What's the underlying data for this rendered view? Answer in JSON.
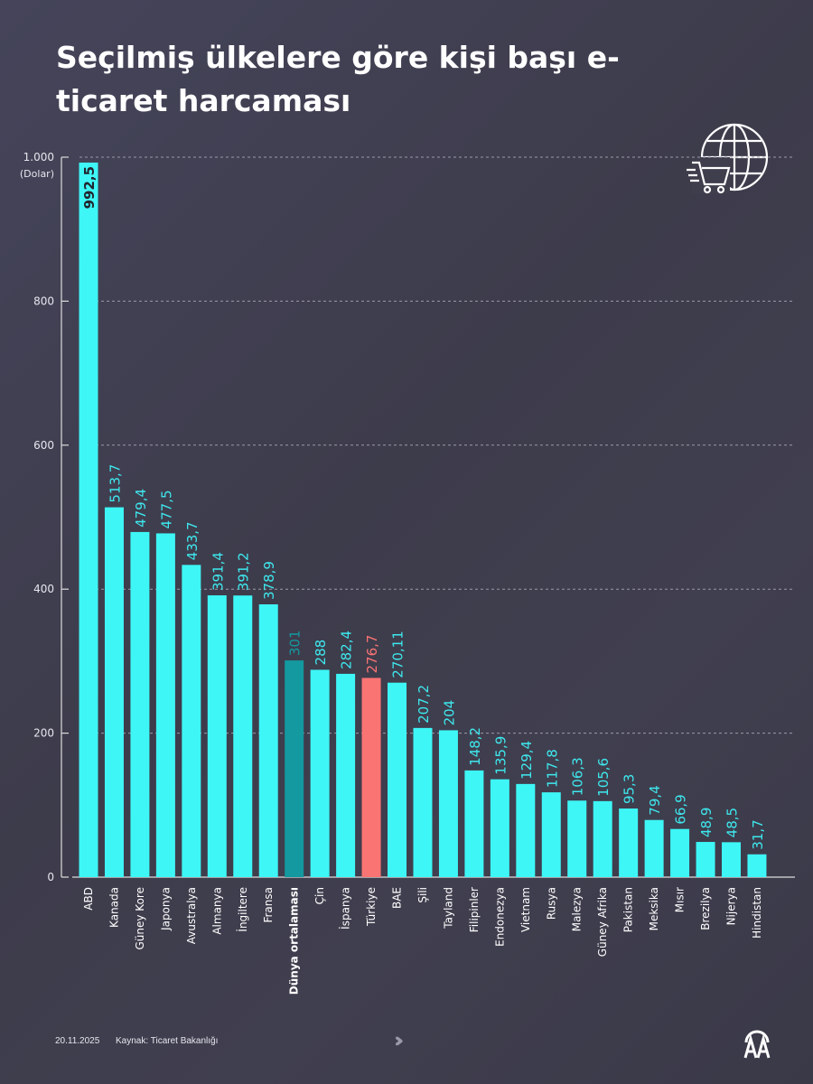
{
  "title": "Seçilmiş ülkelere göre kişi başı e-ticaret harcaması",
  "footer": {
    "date": "20.11.2025",
    "source": "Kaynak: Ticaret Bakanlığı"
  },
  "colors": {
    "bar": "#3ef6f6",
    "world_average": "#13999f",
    "turkey": "#fb7474",
    "background": "#3f3e4d"
  },
  "icons": [
    "globe-shopping-cart-icon",
    "chevrons-right-icon",
    "aa-logo"
  ],
  "chart_data": {
    "type": "bar",
    "title": "Seçilmiş ülkelere göre kişi başı e-ticaret harcaması",
    "ylabel": "(Dolar)",
    "ylim": [
      0,
      1000
    ],
    "yticks": [
      0,
      200,
      400,
      600,
      800,
      1000
    ],
    "ytick_labels": [
      "0",
      "200",
      "400",
      "600",
      "800",
      "1.000"
    ],
    "grid": "horizontal dashed",
    "categories": [
      "ABD",
      "Kanada",
      "Güney Kore",
      "Japonya",
      "Avustralya",
      "Almanya",
      "İngiltere",
      "Fransa",
      "Dünya ortalaması",
      "Çin",
      "İspanya",
      "Türkiye",
      "BAE",
      "Şili",
      "Tayland",
      "Filipinler",
      "Endonezya",
      "Vietnam",
      "Rusya",
      "Malezya",
      "Güney Afrika",
      "Pakistan",
      "Meksika",
      "Mısır",
      "Brezilya",
      "Nijerya",
      "Hindistan"
    ],
    "values": [
      992.5,
      513.7,
      479.4,
      477.5,
      433.7,
      391.4,
      391.2,
      378.9,
      301,
      288,
      282.4,
      276.7,
      270.11,
      207.2,
      204,
      148.2,
      135.9,
      129.4,
      117.8,
      106.3,
      105.6,
      95.3,
      79.4,
      66.9,
      48.9,
      48.5,
      31.7
    ],
    "value_labels": [
      "992,5",
      "513,7",
      "479,4",
      "477,5",
      "433,7",
      "391,4",
      "391,2",
      "378,9",
      "301",
      "288",
      "282,4",
      "276,7",
      "270,11",
      "207,2",
      "204",
      "148,2",
      "135,9",
      "129,4",
      "117,8",
      "106,3",
      "105,6",
      "95,3",
      "79,4",
      "66,9",
      "48,9",
      "48,5",
      "31,7"
    ],
    "highlights": {
      "Dünya ortalaması": "world_average",
      "Türkiye": "turkey"
    }
  }
}
